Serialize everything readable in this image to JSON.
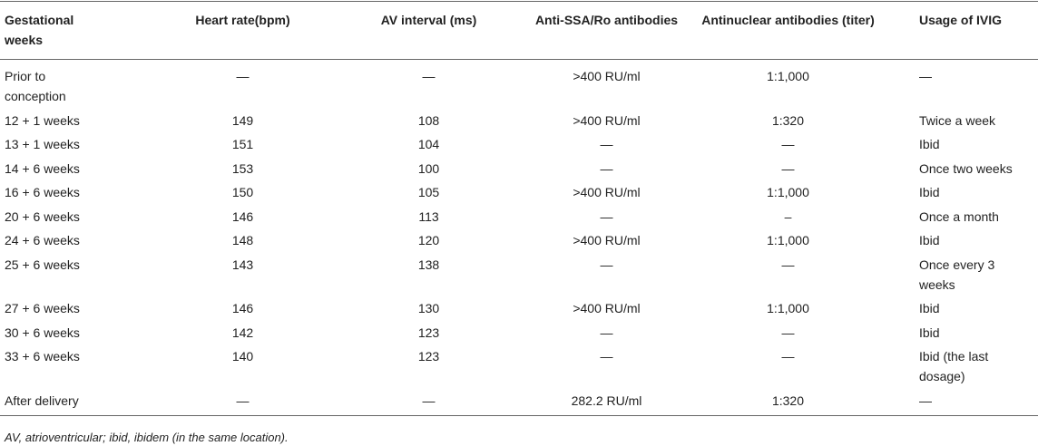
{
  "table": {
    "columns": [
      "Gestational weeks",
      "Heart rate(bpm)",
      "AV interval (ms)",
      "Anti-SSA/Ro antibodies",
      "Antinuclear antibodies (titer)",
      "Usage of IVIG"
    ],
    "rows": [
      [
        "Prior to conception",
        "—",
        "—",
        ">400 RU/ml",
        "1:1,000",
        "—"
      ],
      [
        "12 + 1 weeks",
        "149",
        "108",
        ">400 RU/ml",
        "1:320",
        "Twice a week"
      ],
      [
        "13 + 1 weeks",
        "151",
        "104",
        "—",
        "—",
        "Ibid"
      ],
      [
        "14 + 6 weeks",
        "153",
        "100",
        "—",
        "—",
        "Once two weeks"
      ],
      [
        "16 + 6 weeks",
        "150",
        "105",
        ">400 RU/ml",
        "1:1,000",
        "Ibid"
      ],
      [
        "20 + 6 weeks",
        "146",
        "113",
        "—",
        "–",
        "Once a month"
      ],
      [
        "24 + 6 weeks",
        "148",
        "120",
        ">400 RU/ml",
        "1:1,000",
        "Ibid"
      ],
      [
        "25 + 6 weeks",
        "143",
        "138",
        "—",
        "—",
        "Once every 3 weeks"
      ],
      [
        "27 + 6 weeks",
        "146",
        "130",
        ">400 RU/ml",
        "1:1,000",
        "Ibid"
      ],
      [
        "30 + 6 weeks",
        "142",
        "123",
        "—",
        "—",
        "Ibid"
      ],
      [
        "33 + 6 weeks",
        "140",
        "123",
        "—",
        "—",
        "Ibid (the last dosage)"
      ],
      [
        "After delivery",
        "—",
        "—",
        "282.2 RU/ml",
        "1:320",
        "—"
      ]
    ],
    "footnote": "AV, atrioventricular; ibid, ibidem (in the same location)."
  }
}
